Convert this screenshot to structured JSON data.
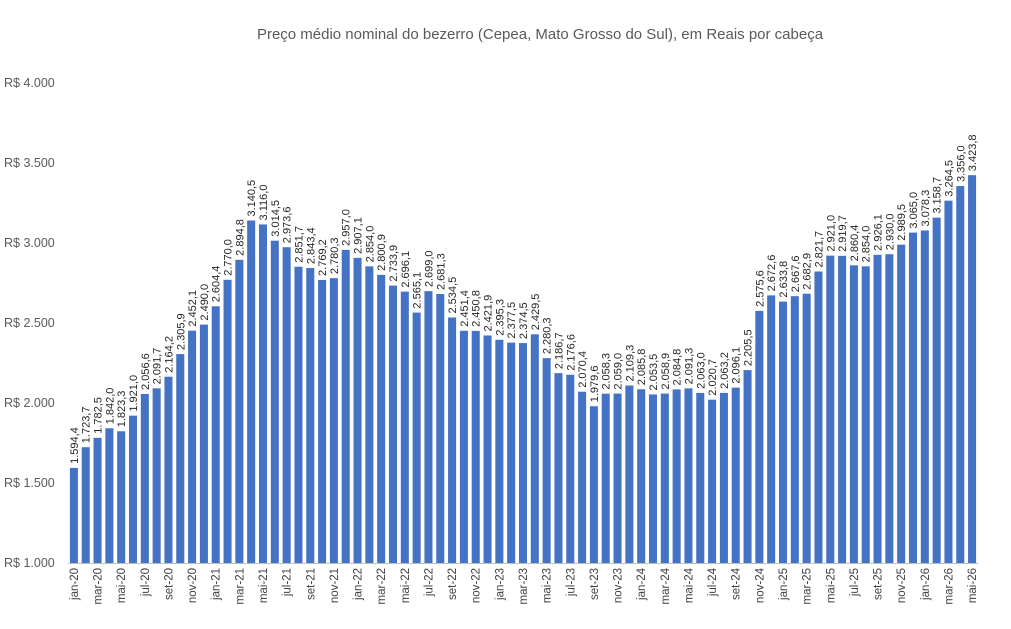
{
  "chart_data": {
    "type": "bar",
    "title": "Preço médio nominal do bezerro (Cepea, Mato Grosso do Sul), em Reais por cabeça",
    "xlabel": "",
    "ylabel": "",
    "ylim": [
      1000,
      4000
    ],
    "yticks": [
      1000,
      1500,
      2000,
      2500,
      3000,
      3500,
      4000
    ],
    "ytick_labels": [
      "R$ 1.000",
      "R$ 1.500",
      "R$ 2.000",
      "R$ 2.500",
      "R$ 3.000",
      "R$ 3.500",
      "R$ 4.000"
    ],
    "grid": false,
    "legend": "none",
    "bar_color": "#4472C4",
    "categories": [
      "jan-20",
      "fev-20",
      "mar-20",
      "abr-20",
      "mai-20",
      "jun-20",
      "jul-20",
      "ago-20",
      "set-20",
      "out-20",
      "nov-20",
      "dez-20",
      "jan-21",
      "fev-21",
      "mar-21",
      "abr-21",
      "mai-21",
      "jun-21",
      "jul-21",
      "ago-21",
      "set-21",
      "out-21",
      "nov-21",
      "dez-21",
      "jan-22",
      "fev-22",
      "mar-22",
      "abr-22",
      "mai-22",
      "jun-22",
      "jul-22",
      "ago-22",
      "set-22",
      "out-22",
      "nov-22",
      "dez-22",
      "jan-23",
      "fev-23",
      "mar-23",
      "abr-23",
      "mai-23",
      "jun-23",
      "jul-23",
      "ago-23",
      "set-23",
      "out-23",
      "nov-23",
      "dez-23",
      "jan-24",
      "fev-24",
      "mar-24",
      "abr-24",
      "mai-24",
      "jun-24",
      "jul-24",
      "ago-24",
      "set-24",
      "out-24",
      "nov-24",
      "dez-24",
      "jan-25",
      "fev-25",
      "mar-25",
      "abr-25",
      "mai-25",
      "jun-25",
      "jul-25",
      "ago-25",
      "set-25",
      "out-25",
      "nov-25",
      "dez-25",
      "jan-26",
      "fev-26",
      "mar-26",
      "abr-26",
      "mai-26"
    ],
    "x_tick_labels": [
      "jan-20",
      "mar-20",
      "mai-20",
      "jul-20",
      "set-20",
      "nov-20",
      "jan-21",
      "mar-21",
      "mai-21",
      "jul-21",
      "set-21",
      "nov-21",
      "jan-22",
      "mar-22",
      "mai-22",
      "jul-22",
      "set-22",
      "nov-22",
      "jan-23",
      "mar-23",
      "mai-23",
      "jul-23",
      "set-23",
      "nov-23",
      "jan-24",
      "mar-24",
      "mai-24",
      "jul-24",
      "set-24",
      "nov-24",
      "jan-25",
      "mar-25",
      "mai-25",
      "jul-25",
      "set-25",
      "nov-25",
      "jan-26",
      "mar-26",
      "mai-26"
    ],
    "values": [
      1594.4,
      1723.7,
      1782.5,
      1842.0,
      1823.3,
      1921.0,
      2056.6,
      2091.7,
      2164.2,
      2305.9,
      2452.1,
      2490.0,
      2604.4,
      2770.0,
      2894.8,
      3140.5,
      3116.0,
      3014.5,
      2973.6,
      2851.7,
      2843.4,
      2769.2,
      2780.3,
      2957.0,
      2907.1,
      2854.0,
      2800.9,
      2733.9,
      2696.1,
      2565.1,
      2699.0,
      2681.3,
      2534.5,
      2451.4,
      2450.8,
      2421.9,
      2395.3,
      2377.5,
      2374.5,
      2429.5,
      2280.3,
      2186.7,
      2176.6,
      2070.4,
      1979.6,
      2058.3,
      2059.0,
      2109.3,
      2085.8,
      2053.5,
      2058.9,
      2084.8,
      2091.3,
      2063.0,
      2020.7,
      2063.2,
      2096.1,
      2205.5,
      2575.6,
      2672.6,
      2633.8,
      2667.6,
      2682.9,
      2821.7,
      2921.0,
      2919.7,
      2860.4,
      2854.0,
      2926.1,
      2930.0,
      2989.5,
      3065.0,
      3078.3,
      3158.7,
      3264.5,
      3356.0,
      3423.8
    ],
    "data_labels": [
      "1.594,4",
      "1.723,7",
      "1.782,5",
      "1.842,0",
      "1.823,3",
      "1.921,0",
      "2.056,6",
      "2.091,7",
      "2.164,2",
      "2.305,9",
      "2.452,1",
      "2.490,0",
      "2.604,4",
      "2.770,0",
      "2.894,8",
      "3.140,5",
      "3.116,0",
      "3.014,5",
      "2.973,6",
      "2.851,7",
      "2.843,4",
      "2.769,2",
      "2.780,3",
      "2.957,0",
      "2.907,1",
      "2.854,0",
      "2.800,9",
      "2.733,9",
      "2.696,1",
      "2.565,1",
      "2.699,0",
      "2.681,3",
      "2.534,5",
      "2.451,4",
      "2.450,8",
      "2.421,9",
      "2.395,3",
      "2.377,5",
      "2.374,5",
      "2.429,5",
      "2.280,3",
      "2.186,7",
      "2.176,6",
      "2.070,4",
      "1.979,6",
      "2.058,3",
      "2.059,0",
      "2.109,3",
      "2.085,8",
      "2.053,5",
      "2.058,9",
      "2.084,8",
      "2.091,3",
      "2.063,0",
      "2.020,7",
      "2.063,2",
      "2.096,1",
      "2.205,5",
      "2.575,6",
      "2.672,6",
      "2.633,8",
      "2.667,6",
      "2.682,9",
      "2.821,7",
      "2.921,0",
      "2.919,7",
      "2.860,4",
      "2.854,0",
      "2.926,1",
      "2.930,0",
      "2.989,5",
      "3.065,0",
      "3.078,3",
      "3.158,7",
      "3.264,5",
      "3.356,0",
      "3.423,8"
    ]
  }
}
